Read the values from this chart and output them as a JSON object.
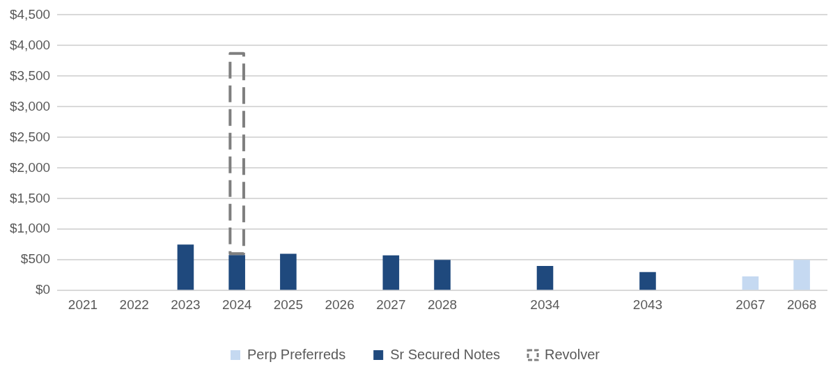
{
  "chart_data": {
    "type": "bar",
    "stacked": true,
    "categories": [
      "2021",
      "2022",
      "2023",
      "2024",
      "2025",
      "2026",
      "2027",
      "2028",
      null,
      "2034",
      null,
      "2043",
      null,
      "2067",
      "2068"
    ],
    "series": [
      {
        "name": "Perp Preferreds",
        "color": "#c5d9f1",
        "values": [
          null,
          null,
          null,
          null,
          null,
          null,
          null,
          null,
          null,
          null,
          null,
          null,
          null,
          230,
          500
        ]
      },
      {
        "name": "Sr Secured Notes",
        "color": "#1f497d",
        "values": [
          null,
          null,
          750,
          580,
          600,
          null,
          575,
          500,
          null,
          400,
          null,
          300,
          null,
          null,
          null
        ]
      },
      {
        "name": "Revolver",
        "color": "#7f7f7f",
        "line_style": "dashed",
        "values": [
          null,
          null,
          null,
          3290,
          null,
          null,
          null,
          null,
          null,
          null,
          null,
          null,
          null,
          null,
          null
        ]
      }
    ],
    "ylim": [
      0,
      4500
    ],
    "yticks": [
      {
        "value": 0,
        "label": "$0"
      },
      {
        "value": 500,
        "label": "$500"
      },
      {
        "value": 1000,
        "label": "$1,000"
      },
      {
        "value": 1500,
        "label": "$1,500"
      },
      {
        "value": 2000,
        "label": "$2,000"
      },
      {
        "value": 2500,
        "label": "$2,500"
      },
      {
        "value": 3000,
        "label": "$3,000"
      },
      {
        "value": 3500,
        "label": "$3,500"
      },
      {
        "value": 4000,
        "label": "$4,000"
      },
      {
        "value": 4500,
        "label": "$4,500"
      }
    ],
    "grid": "y",
    "legend": "bottom"
  }
}
